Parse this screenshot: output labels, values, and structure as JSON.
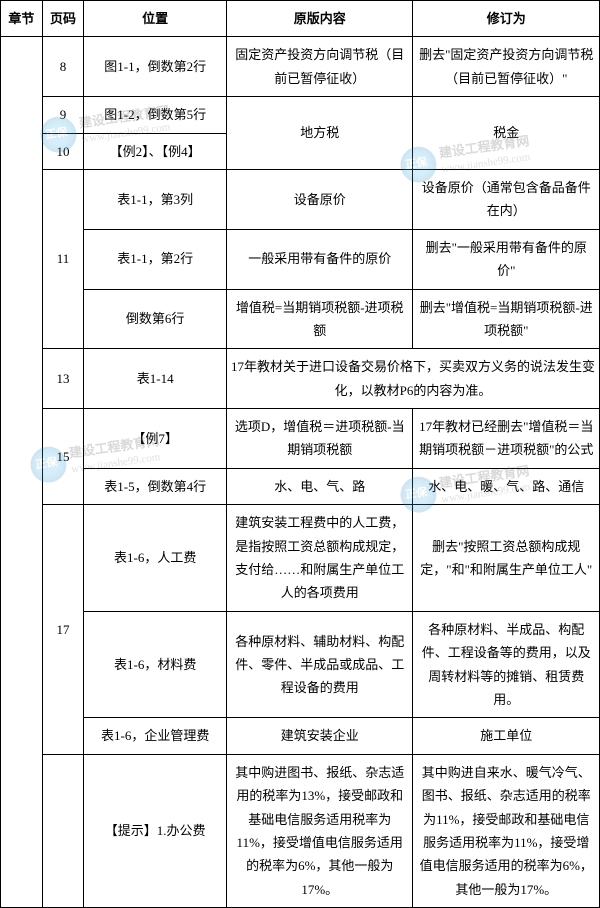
{
  "headers": {
    "chapter": "章节",
    "page": "页码",
    "position": "位置",
    "original": "原版内容",
    "revised": "修订为"
  },
  "watermark": {
    "brand": "正保",
    "line1": "建设工程教育网",
    "line2": "www.jianshe99.com"
  },
  "rows": [
    {
      "chapter": "",
      "page": "8",
      "position": "图1-1，倒数第2行",
      "original": "固定资产投资方向调节税（目前已暂停征收）",
      "revised": "删去\"固定资产投资方向调节税（目前已暂停征收）\""
    },
    {
      "chapter": "",
      "page": "9",
      "position": "图1-2，倒数第5行",
      "original": "地方税",
      "revised": "税金",
      "orig_rowspan": 2,
      "rev_rowspan": 2
    },
    {
      "chapter": "",
      "page": "10",
      "position": "【例2】、【例4】"
    },
    {
      "chapter": "",
      "page": "11",
      "page_rowspan": 3,
      "position": "表1-1，第3列",
      "original": "设备原价",
      "revised": "设备原价（通常包含备品备件在内）"
    },
    {
      "position": "表1-1，第2行",
      "original": "一般采用带有备件的原价",
      "revised": "删去\"一般采用带有备件的原价\""
    },
    {
      "position": "倒数第6行",
      "original": "增值税=当期销项税额-进项税额",
      "revised": "删去\"增值税=当期销项税额-进项税额\""
    },
    {
      "chapter": "",
      "page": "13",
      "position": "表1-14",
      "original": "17年教材关于进口设备交易价格下，买卖双方义务的说法发生变化，以教材P6的内容为准。",
      "orig_colspan": 2
    },
    {
      "chapter": "",
      "page": "15",
      "page_rowspan": 2,
      "position": "【例7】",
      "original": "选项D，增值税＝进项税额-当期销项税额",
      "revised": "17年教材已经删去\"增值税＝当期销项税额－进项税额\"的公式"
    },
    {
      "position": "表1-5，倒数第4行",
      "original": "水、电、气、路",
      "revised": "水、电、暖、气、路、通信"
    },
    {
      "chapter": "",
      "page": "17",
      "page_rowspan": 3,
      "position": "表1-6，人工费",
      "original": "建筑安装工程费中的人工费，是指按照工资总额构成规定，支付给……和附属生产单位工人的各项费用",
      "revised": "删去\"按照工资总额构成规定，\"和\"和附属生产单位工人\""
    },
    {
      "position": "表1-6，材料费",
      "original": "各种原材料、辅助材料、构配件、零件、半成品或成品、工程设备的费用",
      "revised": "各种原材料、半成品、构配件、工程设备等的费用，以及周转材料等的摊销、租赁费用。"
    },
    {
      "position": "表1-6，企业管理费",
      "original": "建筑安装企业",
      "revised": "施工单位"
    },
    {
      "chapter": "",
      "page": "",
      "position": "【提示】1.办公费",
      "original": "其中购进图书、报纸、杂志适用的税率为13%，接受邮政和基础电信服务适用税率为11%，接受增值电信服务适用的税率为6%，其他一般为17%。",
      "revised": "其中购进自来水、暖气冷气、图书、报纸、杂志适用的税率为11%，接受邮政和基础电信服务适用税率为11%，接受增值电信服务适用的税率为6%，其他一般为17%。"
    }
  ]
}
